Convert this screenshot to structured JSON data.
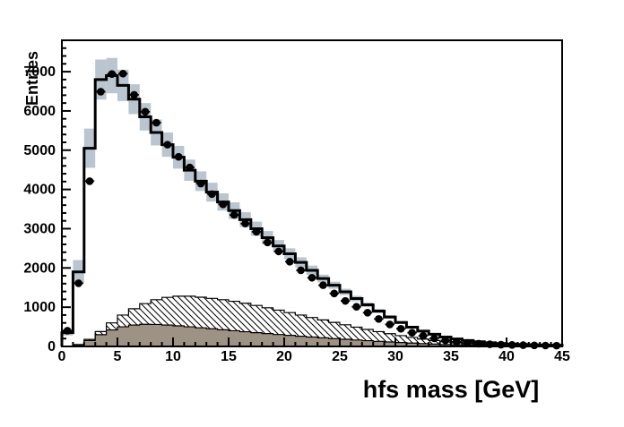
{
  "figure": {
    "x_title": "hfs mass [GeV]",
    "y_title": "Entries",
    "colors": {
      "band": "#b9c6cf",
      "gray_fill": "#9e9285",
      "line": "#000000",
      "marker": "#000000",
      "background": "#ffffff"
    }
  },
  "chart_data": {
    "type": "bar",
    "subtype": "overlaid-1GeV-bin-histograms",
    "title": "",
    "xlabel": "hfs mass [GeV]",
    "ylabel": "Entries",
    "xlim": [
      0,
      45
    ],
    "ylim": [
      0,
      7800
    ],
    "grid": false,
    "legend": "none",
    "x_major_ticks": [
      0,
      5,
      10,
      15,
      20,
      25,
      30,
      35,
      40,
      45
    ],
    "x_tick_labels": [
      "0",
      "5",
      "10",
      "15",
      "20",
      "25",
      "30",
      "35",
      "40",
      "45"
    ],
    "y_major_ticks": [
      0,
      1000,
      2000,
      3000,
      4000,
      5000,
      6000,
      7000
    ],
    "y_tick_labels": [
      "0",
      "1000",
      "2000",
      "3000",
      "4000",
      "5000",
      "6000",
      "7000"
    ],
    "x_minor_step": 1,
    "y_minor_step": 200,
    "bin_width": 1,
    "bin_start": 0,
    "series": [
      {
        "name": "total-mc",
        "style": "step-histogram",
        "stroke": "#000000",
        "fill": "#ffffff",
        "values": [
          350,
          1900,
          5050,
          6800,
          6900,
          6650,
          6300,
          5850,
          5450,
          5140,
          4820,
          4490,
          4210,
          3930,
          3680,
          3460,
          3230,
          3000,
          2770,
          2560,
          2360,
          2140,
          1940,
          1730,
          1560,
          1390,
          1220,
          1060,
          900,
          750,
          610,
          490,
          390,
          310,
          240,
          190,
          150,
          120,
          95,
          75,
          60,
          50,
          42,
          35,
          30
        ]
      },
      {
        "name": "uncertainty-band",
        "style": "band",
        "fill": "#b9c6cf",
        "low": [
          280,
          1600,
          4550,
          6290,
          6450,
          6250,
          5920,
          5500,
          5120,
          4830,
          4530,
          4220,
          3960,
          3690,
          3460,
          3250,
          3040,
          2820,
          2600,
          2410,
          2220,
          2010,
          1820,
          1630,
          1470,
          1310,
          1150,
          1000,
          845,
          705,
          573,
          460,
          366,
          290,
          225,
          178,
          141,
          113,
          89,
          70,
          56,
          47,
          39,
          33,
          28
        ],
        "high": [
          420,
          2200,
          5550,
          7310,
          7350,
          7050,
          6680,
          6200,
          5780,
          5450,
          5110,
          4760,
          4460,
          4170,
          3900,
          3670,
          3420,
          3180,
          2940,
          2710,
          2500,
          2270,
          2060,
          1830,
          1650,
          1470,
          1290,
          1120,
          955,
          795,
          647,
          520,
          414,
          330,
          255,
          202,
          159,
          127,
          101,
          80,
          64,
          53,
          45,
          37,
          32
        ]
      },
      {
        "name": "background-hatched",
        "style": "hatched-histogram",
        "stroke": "#000000",
        "hatch": "backslash-diagonal",
        "values": [
          5,
          50,
          180,
          380,
          600,
          800,
          960,
          1090,
          1190,
          1250,
          1280,
          1280,
          1255,
          1225,
          1190,
          1150,
          1100,
          1045,
          985,
          925,
          862,
          800,
          737,
          675,
          613,
          552,
          492,
          434,
          378,
          325,
          275,
          229,
          188,
          151,
          119,
          92,
          70,
          52,
          38,
          27,
          19,
          13,
          9,
          6,
          4
        ]
      },
      {
        "name": "background-gray",
        "style": "filled-histogram",
        "stroke": "#000000",
        "fill": "#9e9285",
        "values": [
          5,
          40,
          150,
          300,
          420,
          500,
          545,
          565,
          560,
          545,
          525,
          500,
          475,
          450,
          425,
          400,
          375,
          350,
          327,
          304,
          282,
          260,
          239,
          219,
          200,
          182,
          164,
          147,
          130,
          114,
          99,
          85,
          72,
          60,
          49,
          40,
          32,
          25,
          19,
          14,
          10,
          7,
          5,
          4,
          3
        ]
      },
      {
        "name": "data-points",
        "style": "points-with-errors",
        "marker": "filled-circle",
        "color": "#000000",
        "x_centers": [
          0.5,
          1.5,
          2.5,
          3.5,
          4.5,
          5.5,
          6.5,
          7.5,
          8.5,
          9.5,
          10.5,
          11.5,
          12.5,
          13.5,
          14.5,
          15.5,
          16.5,
          17.5,
          18.5,
          19.5,
          20.5,
          21.5,
          22.5,
          23.5,
          24.5,
          25.5,
          26.5,
          27.5,
          28.5,
          29.5,
          30.5,
          31.5,
          32.5,
          33.5,
          34.5,
          35.5,
          36.5,
          37.5,
          38.5,
          39.5,
          40.5,
          41.5,
          42.5,
          43.5,
          44.5
        ],
        "y": [
          400,
          1610,
          4210,
          6490,
          6940,
          6950,
          6410,
          5980,
          5700,
          5140,
          4830,
          4560,
          4150,
          3880,
          3620,
          3350,
          3130,
          2920,
          2650,
          2420,
          2160,
          1940,
          1750,
          1560,
          1350,
          1160,
          1010,
          860,
          700,
          560,
          450,
          350,
          270,
          205,
          155,
          115,
          90,
          70,
          55,
          45,
          38,
          32,
          27,
          23,
          20
        ],
        "y_err": [
          20,
          40,
          65,
          81,
          83,
          83,
          80,
          77,
          75,
          72,
          70,
          68,
          64,
          62,
          60,
          58,
          56,
          54,
          51,
          49,
          46,
          44,
          42,
          39,
          37,
          34,
          32,
          29,
          26,
          24,
          21,
          19,
          16,
          14,
          12,
          11,
          9,
          8,
          7,
          7,
          6,
          6,
          5,
          5,
          4
        ]
      }
    ]
  }
}
